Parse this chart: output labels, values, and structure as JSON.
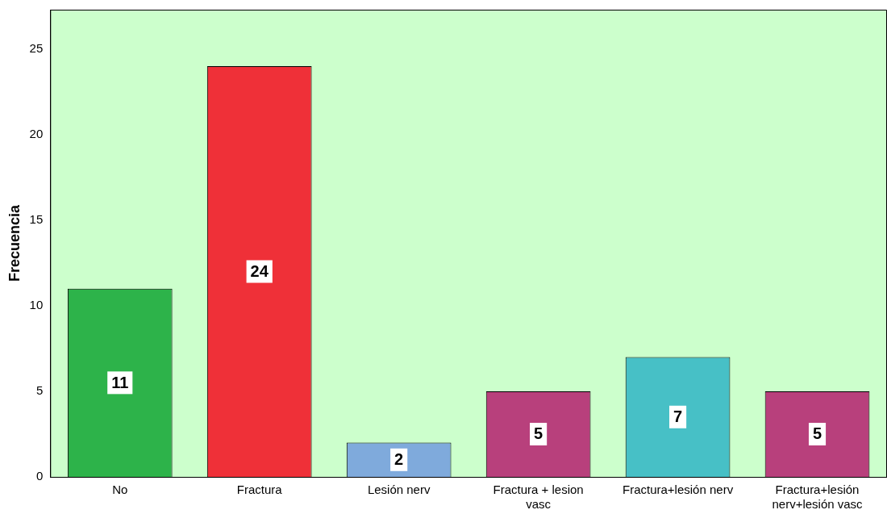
{
  "chart_data": {
    "type": "bar",
    "ylabel": "Frecuencia",
    "categories": [
      "No",
      "Fractura",
      "Lesión nerv",
      "Fractura + lesion vasc",
      "Fractura+lesión nerv",
      "Fractura+lesión nerv+lesión vasc"
    ],
    "values": [
      11,
      24,
      2,
      5,
      7,
      5
    ],
    "colors": [
      "#2db34a",
      "#ef3038",
      "#7faadc",
      "#b8407c",
      "#47c0c6",
      "#b8407c"
    ],
    "ylim": [
      0,
      27.3
    ],
    "yticks": [
      0,
      5,
      10,
      15,
      20,
      25
    ],
    "grid": false,
    "legend": false,
    "data_labels": true
  }
}
